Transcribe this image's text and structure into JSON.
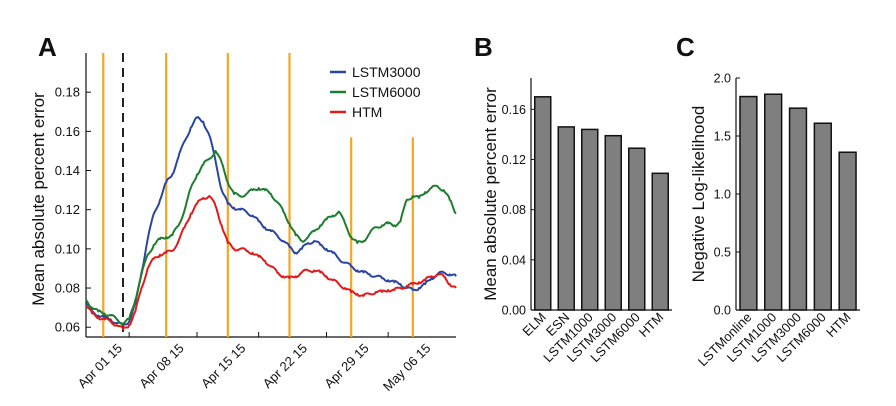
{
  "chart_data": [
    {
      "type": "line",
      "panel_label": "A",
      "xlabel": "",
      "ylabel": "Mean absolute percent error",
      "ylim": [
        0.055,
        0.2
      ],
      "y_ticks": [
        0.06,
        0.08,
        0.1,
        0.12,
        0.14,
        0.16,
        0.18
      ],
      "y_tick_labels": [
        "0.06",
        "0.08",
        "0.10",
        "0.12",
        "0.14",
        "0.16",
        "0.18"
      ],
      "xlim": [
        -2,
        58
      ],
      "x_ticks": [
        5,
        16,
        26,
        37,
        47
      ],
      "x_tick_labels": [
        "Apr 01 15",
        "Apr 08 15",
        "Apr 15 15",
        "Apr 22 15",
        "Apr 29 15",
        "May 06 15"
      ],
      "x_tick_positions": [
        4,
        14,
        24,
        34,
        44,
        54
      ],
      "legend": {
        "position": "top-right",
        "entries": [
          "LSTM3000",
          "LSTM6000",
          "HTM"
        ]
      },
      "colors": {
        "LSTM3000": "#2b46a0",
        "LSTM6000": "#1e7d2f",
        "HTM": "#e01b1b",
        "orange": "#f5a623",
        "dashed": "#222222"
      },
      "orange_markers": [
        {
          "x": 0.8,
          "y_top": 0.2
        },
        {
          "x": 11.0,
          "y_top": 0.2
        },
        {
          "x": 21.0,
          "y_top": 0.2
        },
        {
          "x": 31.0,
          "y_top": 0.2
        },
        {
          "x": 41.0,
          "y_top": 0.157
        },
        {
          "x": 51.0,
          "y_top": 0.157
        }
      ],
      "dashed_marker": {
        "x": 4.0
      },
      "series": [
        {
          "name": "LSTM3000",
          "x": [
            -2,
            -1,
            0,
            1,
            2,
            3,
            4,
            5,
            6,
            7,
            8,
            9,
            10,
            11,
            12,
            13,
            14,
            15,
            16,
            17,
            18,
            19,
            20,
            21,
            22,
            23,
            24,
            25,
            26,
            27,
            28,
            29,
            30,
            31,
            32,
            33,
            34,
            35,
            36,
            37,
            38,
            39,
            40,
            41,
            42,
            43,
            44,
            45,
            46,
            47,
            48,
            49,
            50,
            51,
            52,
            53,
            54,
            55,
            56,
            57,
            58
          ],
          "values": [
            0.072,
            0.068,
            0.066,
            0.065,
            0.064,
            0.062,
            0.061,
            0.063,
            0.072,
            0.088,
            0.105,
            0.118,
            0.125,
            0.134,
            0.138,
            0.147,
            0.155,
            0.162,
            0.167,
            0.165,
            0.158,
            0.145,
            0.13,
            0.123,
            0.121,
            0.12,
            0.119,
            0.117,
            0.114,
            0.111,
            0.109,
            0.107,
            0.104,
            0.101,
            0.098,
            0.1,
            0.103,
            0.104,
            0.102,
            0.1,
            0.098,
            0.095,
            0.093,
            0.091,
            0.089,
            0.088,
            0.087,
            0.086,
            0.085,
            0.084,
            0.083,
            0.082,
            0.08,
            0.079,
            0.08,
            0.082,
            0.085,
            0.087,
            0.088,
            0.087,
            0.086
          ]
        },
        {
          "name": "LSTM6000",
          "x": [
            -2,
            -1,
            0,
            1,
            2,
            3,
            4,
            5,
            6,
            7,
            8,
            9,
            10,
            11,
            12,
            13,
            14,
            15,
            16,
            17,
            18,
            19,
            20,
            21,
            22,
            23,
            24,
            25,
            26,
            27,
            28,
            29,
            30,
            31,
            32,
            33,
            34,
            35,
            36,
            37,
            38,
            39,
            40,
            41,
            42,
            43,
            44,
            45,
            46,
            47,
            48,
            49,
            50,
            51,
            52,
            53,
            54,
            55,
            56,
            57,
            58
          ],
          "values": [
            0.074,
            0.07,
            0.068,
            0.067,
            0.066,
            0.064,
            0.062,
            0.064,
            0.074,
            0.087,
            0.097,
            0.102,
            0.105,
            0.106,
            0.107,
            0.112,
            0.12,
            0.131,
            0.138,
            0.143,
            0.146,
            0.15,
            0.144,
            0.134,
            0.128,
            0.127,
            0.128,
            0.13,
            0.131,
            0.13,
            0.128,
            0.124,
            0.119,
            0.113,
            0.107,
            0.104,
            0.106,
            0.109,
            0.112,
            0.115,
            0.117,
            0.119,
            0.113,
            0.106,
            0.103,
            0.104,
            0.108,
            0.111,
            0.112,
            0.113,
            0.112,
            0.114,
            0.125,
            0.127,
            0.126,
            0.129,
            0.131,
            0.132,
            0.13,
            0.125,
            0.118
          ]
        },
        {
          "name": "HTM",
          "x": [
            -2,
            -1,
            0,
            1,
            2,
            3,
            4,
            5,
            6,
            7,
            8,
            9,
            10,
            11,
            12,
            13,
            14,
            15,
            16,
            17,
            18,
            19,
            20,
            21,
            22,
            23,
            24,
            25,
            26,
            27,
            28,
            29,
            30,
            31,
            32,
            33,
            34,
            35,
            36,
            37,
            38,
            39,
            40,
            41,
            42,
            43,
            44,
            45,
            46,
            47,
            48,
            49,
            50,
            51,
            52,
            53,
            54,
            55,
            56,
            57,
            58
          ],
          "values": [
            0.071,
            0.067,
            0.065,
            0.064,
            0.063,
            0.061,
            0.059,
            0.061,
            0.068,
            0.08,
            0.09,
            0.095,
            0.097,
            0.098,
            0.099,
            0.104,
            0.111,
            0.118,
            0.123,
            0.126,
            0.127,
            0.122,
            0.112,
            0.103,
            0.1,
            0.1,
            0.099,
            0.098,
            0.096,
            0.094,
            0.091,
            0.088,
            0.086,
            0.085,
            0.086,
            0.088,
            0.089,
            0.089,
            0.088,
            0.086,
            0.084,
            0.082,
            0.08,
            0.078,
            0.077,
            0.076,
            0.077,
            0.078,
            0.078,
            0.079,
            0.079,
            0.08,
            0.081,
            0.082,
            0.083,
            0.084,
            0.086,
            0.087,
            0.086,
            0.082,
            0.08
          ]
        }
      ]
    },
    {
      "type": "bar",
      "panel_label": "B",
      "xlabel": "",
      "ylabel": "Mean absolute percent error",
      "ylim": [
        0,
        0.185
      ],
      "y_ticks": [
        0.0,
        0.04,
        0.08,
        0.12,
        0.16
      ],
      "y_tick_labels": [
        "0.00",
        "0.04",
        "0.08",
        "0.12",
        "0.16"
      ],
      "categories": [
        "ELM",
        "ESN",
        "LSTM1000",
        "LSTM3000",
        "LSTM6000",
        "HTM"
      ],
      "values": [
        0.17,
        0.146,
        0.144,
        0.139,
        0.129,
        0.109
      ],
      "bar_color": "#7f7f7f"
    },
    {
      "type": "bar",
      "panel_label": "C",
      "xlabel": "",
      "ylabel": "Negative Log-likelihood",
      "ylim": [
        0,
        2.0
      ],
      "y_ticks": [
        0.0,
        0.5,
        1.0,
        1.5,
        2.0
      ],
      "y_tick_labels": [
        "0.0",
        "0.5",
        "1.0",
        "1.5",
        "2.0"
      ],
      "categories": [
        "LSTMonline",
        "LSTM1000",
        "LSTM3000",
        "LSTM6000",
        "HTM"
      ],
      "values": [
        1.84,
        1.86,
        1.74,
        1.61,
        1.36
      ],
      "bar_color": "#7f7f7f"
    }
  ]
}
